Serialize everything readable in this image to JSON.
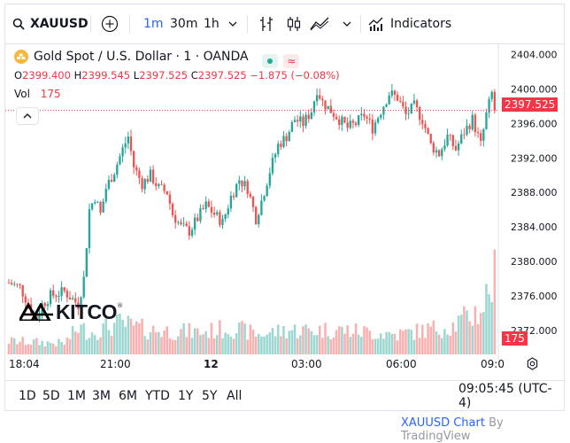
{
  "toolbar": {
    "symbol": "XAUUSD",
    "add_symbol_icon": "plus-circle-icon",
    "intervals": [
      "1m",
      "30m",
      "1h"
    ],
    "active_interval": "1m",
    "indicators_label": "Indicators"
  },
  "legend": {
    "title": "Gold Spot / U.S. Dollar · 1 · OANDA",
    "open_label": "O",
    "open": "2399.400",
    "high_label": "H",
    "high": "2399.545",
    "low_label": "L",
    "low": "2397.525",
    "close_label": "C",
    "close": "2397.525",
    "change": "−1.875 (−0.08%)",
    "volume_label": "Vol",
    "volume": "175"
  },
  "watermark": {
    "brand": "KITCO"
  },
  "price_badge": "2397.525",
  "volume_badge": "175",
  "bottom": {
    "ranges": [
      "1D",
      "5D",
      "1M",
      "3M",
      "6M",
      "YTD",
      "1Y",
      "5Y",
      "All"
    ],
    "clock": "09:05:45 (UTC-4)"
  },
  "footer": {
    "link": "XAUUSD Chart",
    "by": "By TradingView"
  },
  "colors": {
    "up": "#26a69a",
    "down": "#ef5350",
    "accent": "#2962ff"
  },
  "chart_data": {
    "type": "candlestick",
    "y_ticks": [
      2372,
      2376,
      2380,
      2384,
      2388,
      2392,
      2396,
      2400,
      2404
    ],
    "y_tick_labels": [
      "2372.000",
      "2376.000",
      "2380.000",
      "2384.000",
      "2388.000",
      "2392.000",
      "2396.000",
      "2400.000",
      "2404.000"
    ],
    "ylim": [
      2369.2,
      2405.2
    ],
    "x_tick_labels": [
      "18:04",
      "21:00",
      "12",
      "03:00",
      "06:00",
      "09:0"
    ],
    "last_price": 2397.525,
    "close_path": [
      [
        0,
        2377.5
      ],
      [
        4,
        2377.0
      ],
      [
        8,
        2374.5
      ],
      [
        10,
        2373.5
      ],
      [
        12,
        2375.0
      ],
      [
        15,
        2376.0
      ],
      [
        20,
        2376.5
      ],
      [
        25,
        2375.0
      ],
      [
        27,
        2378.0
      ],
      [
        29,
        2386.0
      ],
      [
        31,
        2387.5
      ],
      [
        33,
        2385.5
      ],
      [
        35,
        2388.5
      ],
      [
        38,
        2390.5
      ],
      [
        41,
        2393.0
      ],
      [
        43,
        2394.5
      ],
      [
        45,
        2391.0
      ],
      [
        48,
        2389.0
      ],
      [
        51,
        2390.0
      ],
      [
        54,
        2388.5
      ],
      [
        57,
        2388.0
      ],
      [
        59,
        2385.5
      ],
      [
        62,
        2384.0
      ],
      [
        65,
        2383.5
      ],
      [
        68,
        2385.0
      ],
      [
        71,
        2386.5
      ],
      [
        74,
        2385.5
      ],
      [
        77,
        2384.5
      ],
      [
        80,
        2387.5
      ],
      [
        83,
        2389.5
      ],
      [
        86,
        2388.5
      ],
      [
        89,
        2385.0
      ],
      [
        91,
        2387.0
      ],
      [
        94,
        2390.5
      ],
      [
        97,
        2393.5
      ],
      [
        100,
        2394.5
      ],
      [
        103,
        2396.5
      ],
      [
        106,
        2396.0
      ],
      [
        109,
        2397.5
      ],
      [
        111,
        2400.0
      ],
      [
        113,
        2398.5
      ],
      [
        116,
        2397.5
      ],
      [
        119,
        2396.5
      ],
      [
        122,
        2395.5
      ],
      [
        125,
        2396.0
      ],
      [
        128,
        2397.0
      ],
      [
        131,
        2395.5
      ],
      [
        134,
        2397.5
      ],
      [
        137,
        2399.5
      ],
      [
        140,
        2399.0
      ],
      [
        143,
        2397.0
      ],
      [
        146,
        2398.0
      ],
      [
        149,
        2396.5
      ],
      [
        152,
        2393.5
      ],
      [
        155,
        2392.5
      ],
      [
        158,
        2394.5
      ],
      [
        161,
        2393.0
      ],
      [
        164,
        2395.0
      ],
      [
        167,
        2396.5
      ],
      [
        170,
        2393.5
      ],
      [
        172,
        2397.0
      ],
      [
        174,
        2399.5
      ],
      [
        175,
        2397.5
      ]
    ],
    "volume_profile": [
      [
        0,
        30
      ],
      [
        20,
        25
      ],
      [
        25,
        60
      ],
      [
        30,
        50
      ],
      [
        40,
        70
      ],
      [
        50,
        55
      ],
      [
        70,
        50
      ],
      [
        80,
        60
      ],
      [
        90,
        45
      ],
      [
        100,
        55
      ],
      [
        120,
        55
      ],
      [
        140,
        45
      ],
      [
        160,
        65
      ],
      [
        170,
        100
      ],
      [
        175,
        175
      ]
    ]
  }
}
